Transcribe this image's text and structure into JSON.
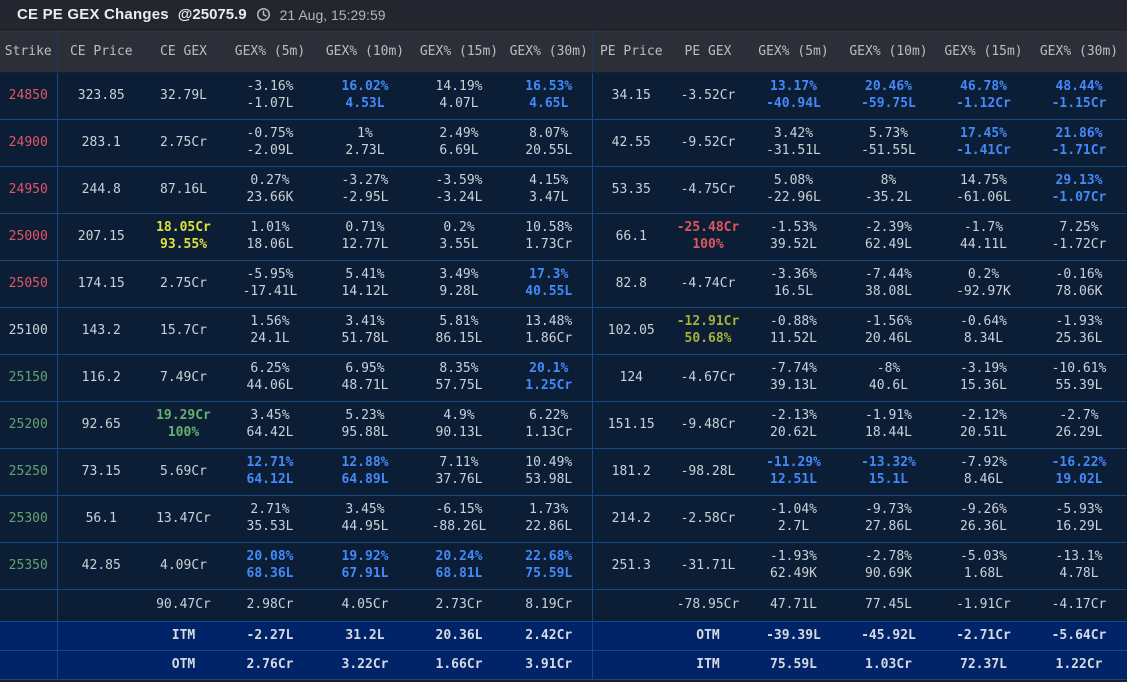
{
  "title": {
    "heading": "CE PE GEX Changes",
    "spot": "@25075.9",
    "timestamp": "21 Aug, 15:29:59"
  },
  "colors": {
    "highlight_blue": "#4489fa",
    "strike_red": "#e15663",
    "strike_green": "#66a26b",
    "gex_yellow": "#dce23a",
    "gex_green": "#67b16c",
    "gex_red": "#e1555f",
    "gex_olive": "#a6b138",
    "row_bg": "#0b1e36",
    "moneyness_row_bg": "#012368"
  },
  "table": {
    "columns": [
      "Strike",
      "CE Price",
      "CE GEX",
      "GEX% (5m)",
      "GEX% (10m)",
      "GEX% (15m)",
      "GEX% (30m)",
      "PE Price",
      "PE GEX",
      "GEX% (5m)",
      "GEX% (10m)",
      "GEX% (15m)",
      "GEX% (30m)"
    ],
    "periods": [
      "5m",
      "10m",
      "15m",
      "30m"
    ],
    "rows": [
      {
        "strike": "24850",
        "strike_color": "red",
        "ce_price": "323.85",
        "ce_gex": {
          "lines": [
            "32.79L"
          ],
          "color": null
        },
        "ce_pct": [
          {
            "pct": "-3.16%",
            "val": "-1.07L",
            "hl": false
          },
          {
            "pct": "16.02%",
            "val": "4.53L",
            "hl": true
          },
          {
            "pct": "14.19%",
            "val": "4.07L",
            "hl": false
          },
          {
            "pct": "16.53%",
            "val": "4.65L",
            "hl": true
          }
        ],
        "pe_price": "34.15",
        "pe_gex": {
          "lines": [
            "-3.52Cr"
          ],
          "color": null
        },
        "pe_pct": [
          {
            "pct": "13.17%",
            "val": "-40.94L",
            "hl": true
          },
          {
            "pct": "20.46%",
            "val": "-59.75L",
            "hl": true
          },
          {
            "pct": "46.78%",
            "val": "-1.12Cr",
            "hl": true
          },
          {
            "pct": "48.44%",
            "val": "-1.15Cr",
            "hl": true
          }
        ]
      },
      {
        "strike": "24900",
        "strike_color": "red",
        "ce_price": "283.1",
        "ce_gex": {
          "lines": [
            "2.75Cr"
          ],
          "color": null
        },
        "ce_pct": [
          {
            "pct": "-0.75%",
            "val": "-2.09L",
            "hl": false
          },
          {
            "pct": "1%",
            "val": "2.73L",
            "hl": false
          },
          {
            "pct": "2.49%",
            "val": "6.69L",
            "hl": false
          },
          {
            "pct": "8.07%",
            "val": "20.55L",
            "hl": false
          }
        ],
        "pe_price": "42.55",
        "pe_gex": {
          "lines": [
            "-9.52Cr"
          ],
          "color": null
        },
        "pe_pct": [
          {
            "pct": "3.42%",
            "val": "-31.51L",
            "hl": false
          },
          {
            "pct": "5.73%",
            "val": "-51.55L",
            "hl": false
          },
          {
            "pct": "17.45%",
            "val": "-1.41Cr",
            "hl": true
          },
          {
            "pct": "21.86%",
            "val": "-1.71Cr",
            "hl": true
          }
        ]
      },
      {
        "strike": "24950",
        "strike_color": "red",
        "ce_price": "244.8",
        "ce_gex": {
          "lines": [
            "87.16L"
          ],
          "color": null
        },
        "ce_pct": [
          {
            "pct": "0.27%",
            "val": "23.66K",
            "hl": false
          },
          {
            "pct": "-3.27%",
            "val": "-2.95L",
            "hl": false
          },
          {
            "pct": "-3.59%",
            "val": "-3.24L",
            "hl": false
          },
          {
            "pct": "4.15%",
            "val": "3.47L",
            "hl": false
          }
        ],
        "pe_price": "53.35",
        "pe_gex": {
          "lines": [
            "-4.75Cr"
          ],
          "color": null
        },
        "pe_pct": [
          {
            "pct": "5.08%",
            "val": "-22.96L",
            "hl": false
          },
          {
            "pct": "8%",
            "val": "-35.2L",
            "hl": false
          },
          {
            "pct": "14.75%",
            "val": "-61.06L",
            "hl": false
          },
          {
            "pct": "29.13%",
            "val": "-1.07Cr",
            "hl": true
          }
        ]
      },
      {
        "strike": "25000",
        "strike_color": "red",
        "ce_price": "207.15",
        "ce_gex": {
          "lines": [
            "18.05Cr",
            "93.55%"
          ],
          "color": "yellow"
        },
        "ce_pct": [
          {
            "pct": "1.01%",
            "val": "18.06L",
            "hl": false
          },
          {
            "pct": "0.71%",
            "val": "12.77L",
            "hl": false
          },
          {
            "pct": "0.2%",
            "val": "3.55L",
            "hl": false
          },
          {
            "pct": "10.58%",
            "val": "1.73Cr",
            "hl": false
          }
        ],
        "pe_price": "66.1",
        "pe_gex": {
          "lines": [
            "-25.48Cr",
            "100%"
          ],
          "color": "red"
        },
        "pe_pct": [
          {
            "pct": "-1.53%",
            "val": "39.52L",
            "hl": false
          },
          {
            "pct": "-2.39%",
            "val": "62.49L",
            "hl": false
          },
          {
            "pct": "-1.7%",
            "val": "44.11L",
            "hl": false
          },
          {
            "pct": "7.25%",
            "val": "-1.72Cr",
            "hl": false
          }
        ]
      },
      {
        "strike": "25050",
        "strike_color": "red",
        "ce_price": "174.15",
        "ce_gex": {
          "lines": [
            "2.75Cr"
          ],
          "color": null
        },
        "ce_pct": [
          {
            "pct": "-5.95%",
            "val": "-17.41L",
            "hl": false
          },
          {
            "pct": "5.41%",
            "val": "14.12L",
            "hl": false
          },
          {
            "pct": "3.49%",
            "val": "9.28L",
            "hl": false
          },
          {
            "pct": "17.3%",
            "val": "40.55L",
            "hl": true
          }
        ],
        "pe_price": "82.8",
        "pe_gex": {
          "lines": [
            "-4.74Cr"
          ],
          "color": null
        },
        "pe_pct": [
          {
            "pct": "-3.36%",
            "val": "16.5L",
            "hl": false
          },
          {
            "pct": "-7.44%",
            "val": "38.08L",
            "hl": false
          },
          {
            "pct": "0.2%",
            "val": "-92.97K",
            "hl": false
          },
          {
            "pct": "-0.16%",
            "val": "78.06K",
            "hl": false
          }
        ]
      },
      {
        "strike": "25100",
        "strike_color": null,
        "ce_price": "143.2",
        "ce_gex": {
          "lines": [
            "15.7Cr"
          ],
          "color": null
        },
        "ce_pct": [
          {
            "pct": "1.56%",
            "val": "24.1L",
            "hl": false
          },
          {
            "pct": "3.41%",
            "val": "51.78L",
            "hl": false
          },
          {
            "pct": "5.81%",
            "val": "86.15L",
            "hl": false
          },
          {
            "pct": "13.48%",
            "val": "1.86Cr",
            "hl": false
          }
        ],
        "pe_price": "102.05",
        "pe_gex": {
          "lines": [
            "-12.91Cr",
            "50.68%"
          ],
          "color": "olive"
        },
        "pe_pct": [
          {
            "pct": "-0.88%",
            "val": "11.52L",
            "hl": false
          },
          {
            "pct": "-1.56%",
            "val": "20.46L",
            "hl": false
          },
          {
            "pct": "-0.64%",
            "val": "8.34L",
            "hl": false
          },
          {
            "pct": "-1.93%",
            "val": "25.36L",
            "hl": false
          }
        ]
      },
      {
        "strike": "25150",
        "strike_color": "green",
        "ce_price": "116.2",
        "ce_gex": {
          "lines": [
            "7.49Cr"
          ],
          "color": null
        },
        "ce_pct": [
          {
            "pct": "6.25%",
            "val": "44.06L",
            "hl": false
          },
          {
            "pct": "6.95%",
            "val": "48.71L",
            "hl": false
          },
          {
            "pct": "8.35%",
            "val": "57.75L",
            "hl": false
          },
          {
            "pct": "20.1%",
            "val": "1.25Cr",
            "hl": true
          }
        ],
        "pe_price": "124",
        "pe_gex": {
          "lines": [
            "-4.67Cr"
          ],
          "color": null
        },
        "pe_pct": [
          {
            "pct": "-7.74%",
            "val": "39.13L",
            "hl": false
          },
          {
            "pct": "-8%",
            "val": "40.6L",
            "hl": false
          },
          {
            "pct": "-3.19%",
            "val": "15.36L",
            "hl": false
          },
          {
            "pct": "-10.61%",
            "val": "55.39L",
            "hl": false
          }
        ]
      },
      {
        "strike": "25200",
        "strike_color": "green",
        "ce_price": "92.65",
        "ce_gex": {
          "lines": [
            "19.29Cr",
            "100%"
          ],
          "color": "green"
        },
        "ce_pct": [
          {
            "pct": "3.45%",
            "val": "64.42L",
            "hl": false
          },
          {
            "pct": "5.23%",
            "val": "95.88L",
            "hl": false
          },
          {
            "pct": "4.9%",
            "val": "90.13L",
            "hl": false
          },
          {
            "pct": "6.22%",
            "val": "1.13Cr",
            "hl": false
          }
        ],
        "pe_price": "151.15",
        "pe_gex": {
          "lines": [
            "-9.48Cr"
          ],
          "color": null
        },
        "pe_pct": [
          {
            "pct": "-2.13%",
            "val": "20.62L",
            "hl": false
          },
          {
            "pct": "-1.91%",
            "val": "18.44L",
            "hl": false
          },
          {
            "pct": "-2.12%",
            "val": "20.51L",
            "hl": false
          },
          {
            "pct": "-2.7%",
            "val": "26.29L",
            "hl": false
          }
        ]
      },
      {
        "strike": "25250",
        "strike_color": "green",
        "ce_price": "73.15",
        "ce_gex": {
          "lines": [
            "5.69Cr"
          ],
          "color": null
        },
        "ce_pct": [
          {
            "pct": "12.71%",
            "val": "64.12L",
            "hl": true
          },
          {
            "pct": "12.88%",
            "val": "64.89L",
            "hl": true
          },
          {
            "pct": "7.11%",
            "val": "37.76L",
            "hl": false
          },
          {
            "pct": "10.49%",
            "val": "53.98L",
            "hl": false
          }
        ],
        "pe_price": "181.2",
        "pe_gex": {
          "lines": [
            "-98.28L"
          ],
          "color": null
        },
        "pe_pct": [
          {
            "pct": "-11.29%",
            "val": "12.51L",
            "hl": true
          },
          {
            "pct": "-13.32%",
            "val": "15.1L",
            "hl": true
          },
          {
            "pct": "-7.92%",
            "val": "8.46L",
            "hl": false
          },
          {
            "pct": "-16.22%",
            "val": "19.02L",
            "hl": true
          }
        ]
      },
      {
        "strike": "25300",
        "strike_color": "green",
        "ce_price": "56.1",
        "ce_gex": {
          "lines": [
            "13.47Cr"
          ],
          "color": null
        },
        "ce_pct": [
          {
            "pct": "2.71%",
            "val": "35.53L",
            "hl": false
          },
          {
            "pct": "3.45%",
            "val": "44.95L",
            "hl": false
          },
          {
            "pct": "-6.15%",
            "val": "-88.26L",
            "hl": false
          },
          {
            "pct": "1.73%",
            "val": "22.86L",
            "hl": false
          }
        ],
        "pe_price": "214.2",
        "pe_gex": {
          "lines": [
            "-2.58Cr"
          ],
          "color": null
        },
        "pe_pct": [
          {
            "pct": "-1.04%",
            "val": "2.7L",
            "hl": false
          },
          {
            "pct": "-9.73%",
            "val": "27.86L",
            "hl": false
          },
          {
            "pct": "-9.26%",
            "val": "26.36L",
            "hl": false
          },
          {
            "pct": "-5.93%",
            "val": "16.29L",
            "hl": false
          }
        ]
      },
      {
        "strike": "25350",
        "strike_color": "green",
        "ce_price": "42.85",
        "ce_gex": {
          "lines": [
            "4.09Cr"
          ],
          "color": null
        },
        "ce_pct": [
          {
            "pct": "20.08%",
            "val": "68.36L",
            "hl": true
          },
          {
            "pct": "19.92%",
            "val": "67.91L",
            "hl": true
          },
          {
            "pct": "20.24%",
            "val": "68.81L",
            "hl": true
          },
          {
            "pct": "22.68%",
            "val": "75.59L",
            "hl": true
          }
        ],
        "pe_price": "251.3",
        "pe_gex": {
          "lines": [
            "-31.71L"
          ],
          "color": null
        },
        "pe_pct": [
          {
            "pct": "-1.93%",
            "val": "62.49K",
            "hl": false
          },
          {
            "pct": "-2.78%",
            "val": "90.69K",
            "hl": false
          },
          {
            "pct": "-5.03%",
            "val": "1.68L",
            "hl": false
          },
          {
            "pct": "-13.1%",
            "val": "4.78L",
            "hl": false
          }
        ]
      }
    ],
    "totals": {
      "ce_gex": "90.47Cr",
      "ce": [
        "2.98Cr",
        "4.05Cr",
        "2.73Cr",
        "8.19Cr"
      ],
      "pe_gex": "-78.95Cr",
      "pe": [
        "47.71L",
        "77.45L",
        "-1.91Cr",
        "-4.17Cr"
      ]
    },
    "moneyness": [
      {
        "ce_label": "ITM",
        "ce": [
          "-2.27L",
          "31.2L",
          "20.36L",
          "2.42Cr"
        ],
        "pe_label": "OTM",
        "pe": [
          "-39.39L",
          "-45.92L",
          "-2.71Cr",
          "-5.64Cr"
        ]
      },
      {
        "ce_label": "OTM",
        "ce": [
          "2.76Cr",
          "3.22Cr",
          "1.66Cr",
          "3.91Cr"
        ],
        "pe_label": "ITM",
        "pe": [
          "75.59L",
          "1.03Cr",
          "72.37L",
          "1.22Cr"
        ]
      }
    ]
  }
}
